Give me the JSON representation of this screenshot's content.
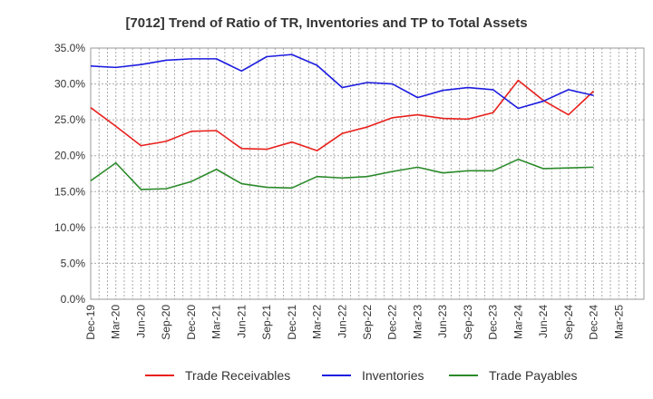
{
  "chart_data": {
    "type": "line",
    "title": "[7012]  Trend of Ratio of TR, Inventories and TP to Total Assets",
    "xlabel": "",
    "ylabel": "",
    "ylim": [
      0,
      35
    ],
    "y_ticks": [
      "0.0%",
      "5.0%",
      "10.0%",
      "15.0%",
      "20.0%",
      "25.0%",
      "30.0%",
      "35.0%"
    ],
    "x_ticks": [
      "Dec-19",
      "Mar-20",
      "Jun-20",
      "Sep-20",
      "Dec-20",
      "Mar-21",
      "Jun-21",
      "Sep-21",
      "Dec-21",
      "Mar-22",
      "Jun-22",
      "Sep-22",
      "Dec-22",
      "Mar-23",
      "Jun-23",
      "Sep-23",
      "Dec-23",
      "Mar-24",
      "Jun-24",
      "Sep-24",
      "Dec-24",
      "Mar-25"
    ],
    "categories": [
      "Dec-19",
      "Mar-20",
      "Jun-20",
      "Sep-20",
      "Dec-20",
      "Mar-21",
      "Jun-21",
      "Sep-21",
      "Dec-21",
      "Mar-22",
      "Jun-22",
      "Sep-22",
      "Dec-22",
      "Mar-23",
      "Jun-23",
      "Sep-23",
      "Dec-23",
      "Mar-24",
      "Jun-24",
      "Sep-24",
      "Dec-24"
    ],
    "grid": true,
    "legend_position": "bottom",
    "series": [
      {
        "name": "Trade Receivables",
        "color": "#e8201c",
        "values": [
          26.7,
          24.1,
          21.4,
          22.0,
          23.4,
          23.5,
          21.0,
          20.9,
          21.9,
          20.7,
          23.1,
          24.0,
          25.3,
          25.7,
          25.2,
          25.1,
          26.0,
          30.5,
          27.7,
          25.7,
          29.0
        ]
      },
      {
        "name": "Inventories",
        "color": "#1c1ce0",
        "values": [
          32.5,
          32.3,
          32.7,
          33.3,
          33.5,
          33.5,
          31.8,
          33.8,
          34.1,
          32.6,
          29.5,
          30.2,
          30.0,
          28.1,
          29.1,
          29.5,
          29.2,
          26.6,
          27.6,
          29.2,
          28.4
        ]
      },
      {
        "name": "Trade Payables",
        "color": "#2a8a2a",
        "values": [
          16.5,
          19.0,
          15.3,
          15.4,
          16.4,
          18.1,
          16.1,
          15.6,
          15.5,
          17.1,
          16.9,
          17.1,
          17.8,
          18.4,
          17.6,
          17.9,
          17.9,
          19.5,
          18.2,
          18.3,
          18.4
        ]
      }
    ]
  }
}
